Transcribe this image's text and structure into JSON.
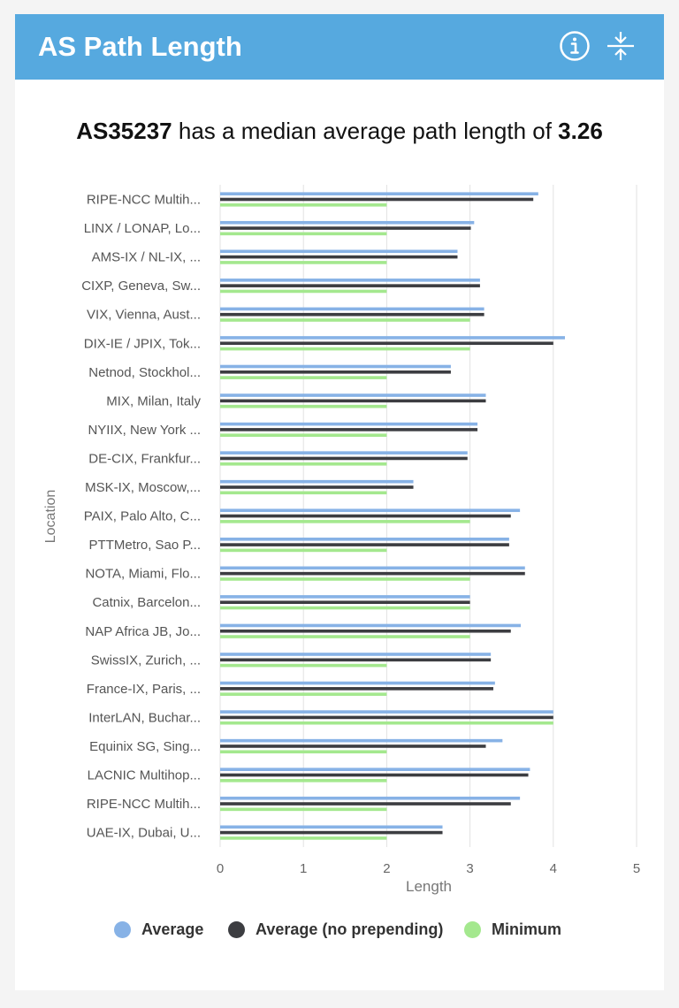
{
  "header": {
    "title": "AS Path Length",
    "info_icon": "info-circle-icon",
    "collapse_icon": "collapse-arrows-icon",
    "color": "#56a9df"
  },
  "summary": {
    "asn": "AS35237",
    "text": " has a median average path length of ",
    "value": "3.26"
  },
  "chart_data": {
    "type": "bar",
    "orientation": "horizontal",
    "xlabel": "Length",
    "ylabel": "Location",
    "xlim": [
      0,
      5
    ],
    "xticks": [
      "0",
      "1",
      "2",
      "3",
      "4",
      "5"
    ],
    "grid": true,
    "legend_position": "bottom",
    "categories": [
      "RIPE-NCC Multih...",
      "LINX / LONAP, Lo...",
      "AMS-IX / NL-IX, ...",
      "CIXP, Geneva, Sw...",
      "VIX, Vienna, Aust...",
      "DIX-IE / JPIX, Tok...",
      "Netnod, Stockhol...",
      "MIX, Milan, Italy",
      "NYIIX, New York ...",
      "DE-CIX, Frankfur...",
      "MSK-IX, Moscow,...",
      "PAIX, Palo Alto, C...",
      "PTTMetro, Sao P...",
      "NOTA, Miami, Flo...",
      "Catnix, Barcelon...",
      "NAP Africa JB, Jo...",
      "SwissIX, Zurich, ...",
      "France-IX, Paris, ...",
      "InterLAN, Buchar...",
      "Equinix SG, Sing...",
      "LACNIC Multihop...",
      "RIPE-NCC Multih...",
      "UAE-IX, Dubai, U..."
    ],
    "series": [
      {
        "name": "Average",
        "color": "#87b2e6",
        "values": [
          3.82,
          3.05,
          2.85,
          3.12,
          3.17,
          4.14,
          2.77,
          3.19,
          3.09,
          2.97,
          2.32,
          3.6,
          3.47,
          3.66,
          3.0,
          3.61,
          3.25,
          3.3,
          4.0,
          3.39,
          3.72,
          3.6,
          2.67
        ]
      },
      {
        "name": "Average (no prepending)",
        "color": "#3c3d41",
        "values": [
          3.76,
          3.01,
          2.85,
          3.12,
          3.17,
          4.0,
          2.77,
          3.19,
          3.09,
          2.97,
          2.32,
          3.49,
          3.47,
          3.66,
          3.0,
          3.49,
          3.25,
          3.28,
          4.0,
          3.19,
          3.7,
          3.49,
          2.67
        ]
      },
      {
        "name": "Minimum",
        "color": "#a4e88e",
        "values": [
          2,
          2,
          2,
          2,
          3,
          3,
          2,
          2,
          2,
          2,
          2,
          3,
          2,
          3,
          3,
          3,
          2,
          2,
          4,
          2,
          2,
          2,
          2
        ]
      }
    ]
  }
}
